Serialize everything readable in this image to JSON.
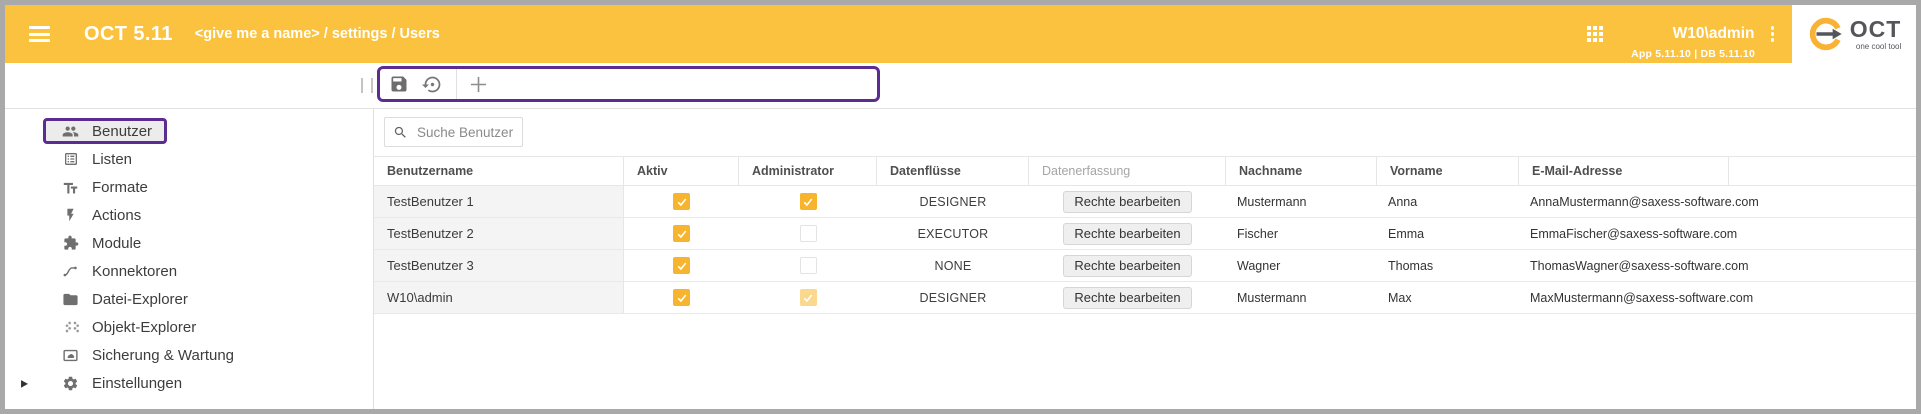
{
  "header": {
    "app_title": "OCT 5.11",
    "breadcrumb": "<give me a name> / settings / Users",
    "user": "W10\\admin",
    "version_info": "App 5.11.10 | DB 5.11.10",
    "logo_text": "OCT",
    "logo_tagline": "one cool tool",
    "icons": [
      "menu-icon",
      "apps-grid-icon",
      "kebab-menu-icon",
      "oct-logo"
    ]
  },
  "colors": {
    "header_bg": "#FBC240",
    "accent_purple": "#5C2D91",
    "checkbox_checked": "#F7B42C",
    "checkbox_checked_disabled": "#FAD88D",
    "logo_ring": "#F9B233"
  },
  "toolbar": {
    "icons": [
      "save-icon",
      "restore-icon",
      "add-icon"
    ]
  },
  "sidebar": {
    "items": [
      {
        "label": "Benutzer",
        "icon": "users-icon",
        "selected": true
      },
      {
        "label": "Listen",
        "icon": "list-icon",
        "selected": false
      },
      {
        "label": "Formate",
        "icon": "text-format-icon",
        "selected": false
      },
      {
        "label": "Actions",
        "icon": "flash-icon",
        "selected": false
      },
      {
        "label": "Module",
        "icon": "puzzle-icon",
        "selected": false
      },
      {
        "label": "Konnektoren",
        "icon": "connector-icon",
        "selected": false
      },
      {
        "label": "Datei-Explorer",
        "icon": "folder-icon",
        "selected": false
      },
      {
        "label": "Objekt-Explorer",
        "icon": "dot-grid-icon",
        "selected": false
      },
      {
        "label": "Sicherung & Wartung",
        "icon": "backup-icon",
        "selected": false
      },
      {
        "label": "Einstellungen",
        "icon": "gear-icon",
        "selected": false,
        "expandable": true
      }
    ]
  },
  "search": {
    "placeholder": "Suche Benutzer",
    "icon": "search-icon"
  },
  "table": {
    "columns": [
      {
        "label": "Benutzername",
        "muted": false
      },
      {
        "label": "Aktiv",
        "muted": false
      },
      {
        "label": "Administrator",
        "muted": false
      },
      {
        "label": "Datenflüsse",
        "muted": false
      },
      {
        "label": "Datenerfassung",
        "muted": true
      },
      {
        "label": "Nachname",
        "muted": false
      },
      {
        "label": "Vorname",
        "muted": false
      },
      {
        "label": "E-Mail-Adresse",
        "muted": false
      }
    ],
    "action_label": "Rechte bearbeiten",
    "rows": [
      {
        "benutzername": "TestBenutzer 1",
        "aktiv": true,
        "administrator": true,
        "admin_disabled": false,
        "datenfluesse": "DESIGNER",
        "nachname": "Mustermann",
        "vorname": "Anna",
        "email": "AnnaMustermann@saxess-software.com"
      },
      {
        "benutzername": "TestBenutzer 2",
        "aktiv": true,
        "administrator": false,
        "admin_disabled": false,
        "datenfluesse": "EXECUTOR",
        "nachname": "Fischer",
        "vorname": "Emma",
        "email": "EmmaFischer@saxess-software.com"
      },
      {
        "benutzername": "TestBenutzer 3",
        "aktiv": true,
        "administrator": false,
        "admin_disabled": false,
        "datenfluesse": "NONE",
        "nachname": "Wagner",
        "vorname": "Thomas",
        "email": "ThomasWagner@saxess-software.com"
      },
      {
        "benutzername": "W10\\admin",
        "aktiv": true,
        "administrator": true,
        "admin_disabled": true,
        "datenfluesse": "DESIGNER",
        "nachname": "Mustermann",
        "vorname": "Max",
        "email": "MaxMustermann@saxess-software.com"
      }
    ]
  }
}
